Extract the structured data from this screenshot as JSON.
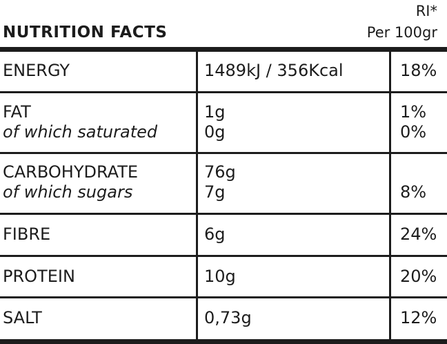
{
  "header": {
    "title": "NUTRITION FACTS",
    "ri_label": "RI*",
    "per_label": "Per 100gr"
  },
  "rows": [
    {
      "name": "ENERGY",
      "amount": "1489kJ  /  356Kcal",
      "ri": "18%"
    },
    {
      "name": "FAT",
      "sub_name": "of which saturated",
      "amount": "1g",
      "sub_amount": "0g",
      "ri": "1%",
      "sub_ri": "0%"
    },
    {
      "name": "CARBOHYDRATE",
      "sub_name": "of which sugars",
      "amount": "76g",
      "sub_amount": "7g",
      "ri": "",
      "sub_ri": "8%"
    },
    {
      "name": "FIBRE",
      "amount": "6g",
      "ri": "24%"
    },
    {
      "name": "PROTEIN",
      "amount": "10g",
      "ri": "20%"
    },
    {
      "name": "SALT",
      "amount": "0,73g",
      "ri": "12%"
    }
  ]
}
